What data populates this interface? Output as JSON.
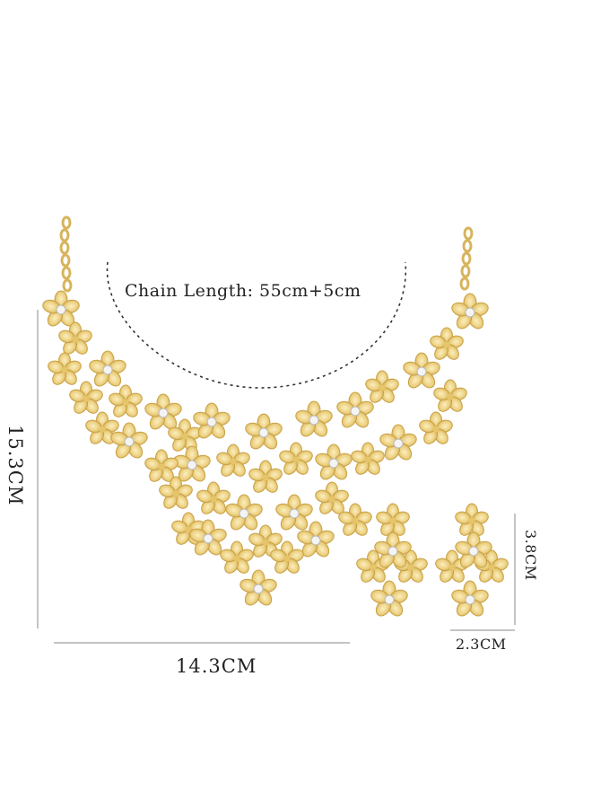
{
  "labels": {
    "chain_length": "Chain Length: 55cm+5cm",
    "necklace_width": "14.3CM",
    "necklace_height": "15.3CM",
    "earring_width": "2.3CM",
    "earring_height": "3.8CM"
  },
  "colors": {
    "background": "#ffffff",
    "gold_light": "#f6e3a6",
    "gold_mid": "#e6c46a",
    "gold_dark": "#c9a247",
    "rhinestone": "#f4f4f4",
    "dimension_line": "#888888"
  }
}
